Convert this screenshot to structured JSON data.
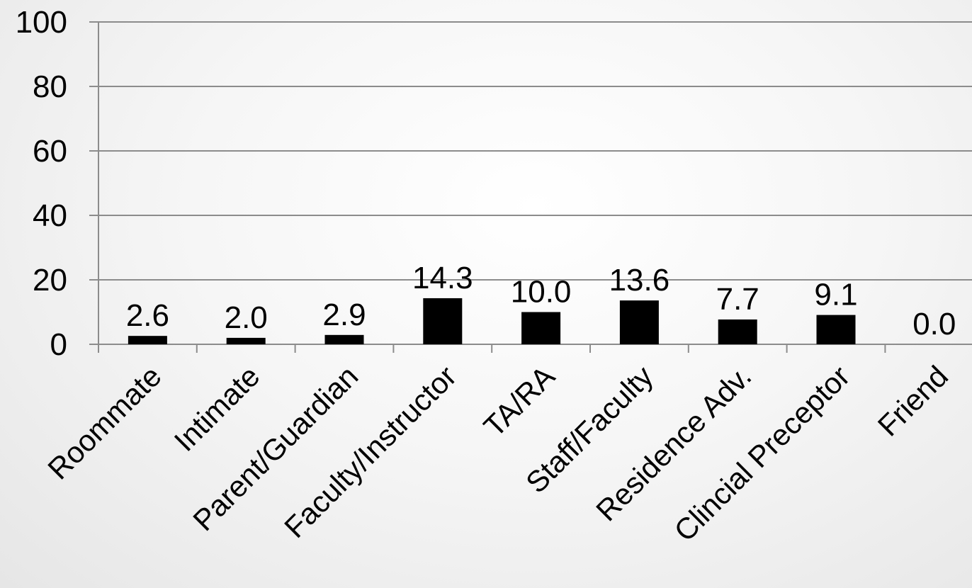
{
  "chart_data": {
    "type": "bar",
    "categories": [
      "Roommate",
      "Intimate",
      "Parent/Guardian",
      "Faculty/Instructor",
      "TA/RA",
      "Staff/Faculty",
      "Residence Adv.",
      "Clincial Preceptor",
      "Friend"
    ],
    "values": [
      2.6,
      2.0,
      2.9,
      14.3,
      10.0,
      13.6,
      7.7,
      9.1,
      0.0
    ],
    "data_labels": [
      "2.6",
      "2.0",
      "2.9",
      "14.3",
      "10.0",
      "13.6",
      "7.7",
      "9.1",
      "0.0"
    ],
    "yticks": [
      "0",
      "20",
      "40",
      "60",
      "80",
      "100"
    ],
    "ylim": [
      0,
      100
    ],
    "grid": true,
    "bar_color": "#000000",
    "grid_color": "#8c8c8c",
    "title": "",
    "xlabel": "",
    "ylabel": ""
  }
}
